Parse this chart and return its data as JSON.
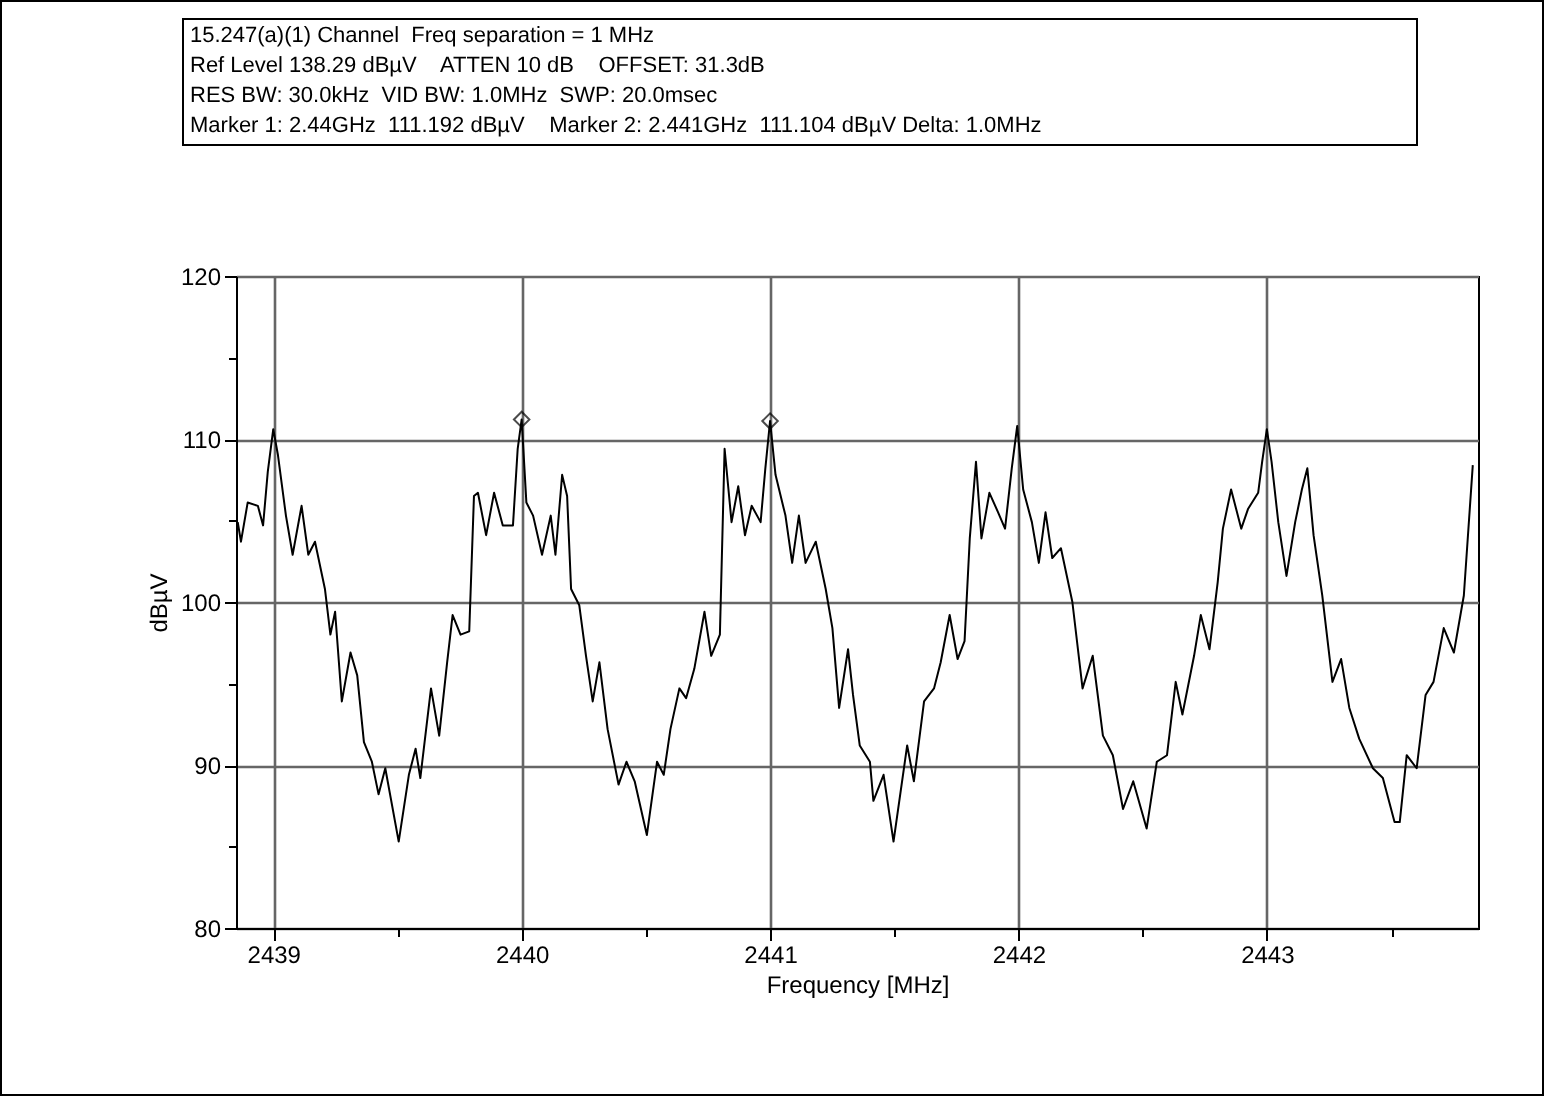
{
  "chart_data": {
    "type": "line",
    "annotations": [
      "15.247(a)(1) Channel  Freq separation = 1 MHz",
      "Ref Level 138.29 dBµV    ATTEN 10 dB    OFFSET: 31.3dB",
      "RES BW: 30.0kHz  VID BW: 1.0MHz  SWP: 20.0msec",
      "Marker 1: 2.44GHz  111.192 dBµV    Marker 2: 2.441GHz  111.104 dBµV Delta: 1.0MHz"
    ],
    "xlabel": "Frequency [MHz]",
    "ylabel": "dBµV",
    "xlim": [
      2438.85,
      2443.85
    ],
    "ylim": [
      80,
      120
    ],
    "xticks": [
      2439,
      {
        "value": 2439.5,
        "label": null
      },
      2440,
      {
        "value": 2440.5,
        "label": null
      },
      2441,
      {
        "value": 2441.5,
        "label": null
      },
      2442,
      {
        "value": 2442.5,
        "label": null
      },
      2443,
      {
        "value": 2443.5,
        "label": null
      }
    ],
    "yticks": [
      80,
      {
        "value": 85,
        "label": null
      },
      90,
      {
        "value": 95,
        "label": null
      },
      100,
      {
        "value": 105,
        "label": null
      },
      110,
      {
        "value": 115,
        "label": null
      },
      120
    ],
    "grid": true,
    "series": [
      {
        "color": "#000000",
        "x": [
          2438.857,
          2438.87,
          2438.897,
          2438.938,
          2438.959,
          2438.978,
          2439.0,
          2439.019,
          2439.051,
          2439.078,
          2439.114,
          2439.141,
          2439.168,
          2439.208,
          2439.23,
          2439.249,
          2439.276,
          2439.311,
          2439.338,
          2439.365,
          2439.397,
          2439.424,
          2439.451,
          2439.505,
          2439.546,
          2439.573,
          2439.592,
          2439.635,
          2439.668,
          2439.7,
          2439.722,
          2439.754,
          2439.789,
          2439.808,
          2439.824,
          2439.857,
          2439.889,
          2439.924,
          2439.965,
          2439.984,
          2440.0,
          2440.019,
          2440.046,
          2440.082,
          2440.117,
          2440.136,
          2440.163,
          2440.183,
          2440.199,
          2440.232,
          2440.259,
          2440.286,
          2440.313,
          2440.346,
          2440.39,
          2440.422,
          2440.455,
          2440.504,
          2440.545,
          2440.572,
          2440.599,
          2440.635,
          2440.662,
          2440.695,
          2440.736,
          2440.763,
          2440.798,
          2440.817,
          2440.845,
          2440.872,
          2440.899,
          2440.926,
          2440.962,
          2440.981,
          2441.0,
          2441.022,
          2441.062,
          2441.089,
          2441.116,
          2441.143,
          2441.184,
          2441.224,
          2441.251,
          2441.278,
          2441.314,
          2441.334,
          2441.361,
          2441.402,
          2441.416,
          2441.457,
          2441.497,
          2441.552,
          2441.579,
          2441.62,
          2441.66,
          2441.687,
          2441.723,
          2441.755,
          2441.783,
          2441.804,
          2441.829,
          2441.851,
          2441.883,
          2441.918,
          2441.946,
          2441.973,
          2441.995,
          2442.019,
          2442.054,
          2442.082,
          2442.109,
          2442.136,
          2442.171,
          2442.217,
          2442.258,
          2442.299,
          2442.34,
          2442.38,
          2442.421,
          2442.462,
          2442.516,
          2442.557,
          2442.598,
          2442.633,
          2442.66,
          2442.707,
          2442.734,
          2442.769,
          2442.802,
          2442.823,
          2442.856,
          2442.897,
          2442.924,
          2442.965,
          2442.981,
          2443.0,
          2443.019,
          2443.046,
          2443.079,
          2443.114,
          2443.141,
          2443.163,
          2443.188,
          2443.223,
          2443.264,
          2443.299,
          2443.332,
          2443.372,
          2443.427,
          2443.467,
          2443.514,
          2443.535,
          2443.563,
          2443.603,
          2443.639,
          2443.671,
          2443.712,
          2443.753,
          2443.793,
          2443.829
        ],
        "values": [
          104.9,
          103.7,
          106.1,
          105.9,
          104.7,
          108,
          110.6,
          109,
          105.3,
          102.9,
          105.9,
          102.9,
          103.7,
          100.8,
          98,
          99.4,
          93.9,
          96.9,
          95.5,
          91.4,
          90.2,
          88.2,
          89.8,
          85.3,
          89.4,
          91,
          89.2,
          94.7,
          91.8,
          96.3,
          99.2,
          98,
          98.2,
          106.5,
          106.7,
          104.1,
          106.7,
          104.7,
          104.7,
          109.4,
          111.2,
          106.1,
          105.3,
          102.9,
          105.3,
          102.9,
          107.8,
          106.5,
          100.8,
          99.8,
          96.7,
          93.9,
          96.3,
          92.2,
          88.8,
          90.2,
          89,
          85.7,
          90.2,
          89.4,
          92.2,
          94.7,
          94.1,
          95.9,
          99.4,
          96.7,
          98,
          109.4,
          104.9,
          107.1,
          104.1,
          105.9,
          104.9,
          108.2,
          111.1,
          107.8,
          105.3,
          102.4,
          105.3,
          102.4,
          103.7,
          100.8,
          98.4,
          93.5,
          97.1,
          94.3,
          91.2,
          90.2,
          87.8,
          89.4,
          85.3,
          91.2,
          89,
          93.9,
          94.7,
          96.3,
          99.2,
          96.5,
          97.6,
          103.9,
          108.6,
          103.9,
          106.7,
          105.5,
          104.5,
          108.2,
          110.8,
          106.9,
          104.9,
          102.4,
          105.5,
          102.7,
          103.3,
          100,
          94.7,
          96.7,
          91.8,
          90.6,
          87.3,
          89,
          86.1,
          90.2,
          90.6,
          95.1,
          93.1,
          96.7,
          99.2,
          97.1,
          101.2,
          104.5,
          106.9,
          104.5,
          105.7,
          106.7,
          108.6,
          110.6,
          108.6,
          104.9,
          101.6,
          104.9,
          106.9,
          108.2,
          104.1,
          100.4,
          95.1,
          96.5,
          93.5,
          91.6,
          89.8,
          89.2,
          86.5,
          86.5,
          90.6,
          89.8,
          94.3,
          95.1,
          98.4,
          96.9,
          100.4,
          108.4
        ]
      },
      {
        "type": "scatter",
        "marker": "diamond",
        "color": "#000000",
        "x": [
          2440,
          2441
        ],
        "values": [
          111.2,
          111.1
        ]
      }
    ]
  }
}
